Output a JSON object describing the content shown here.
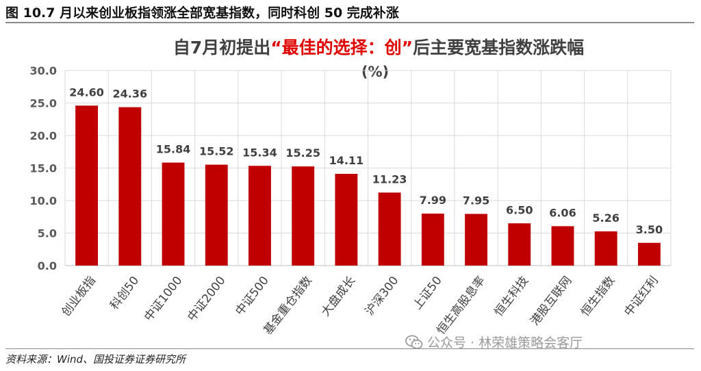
{
  "figure": {
    "title": "图 10.7 月以来创业板指领涨全部宽基指数，同时科创 50 完成补涨",
    "source": "资料来源：Wind、国投证券证券研究所",
    "watermark": "公众号 · 林荣雄策略会客厅",
    "watermark_icon": "wechat-icon"
  },
  "chart_data": {
    "type": "bar",
    "title_pre": "自7月初提出",
    "title_highlight": "“最佳的选择：创”",
    "title_post": "后主要宽基指数涨跌幅",
    "subtitle": "(%)",
    "categories": [
      "创业板指",
      "科创50",
      "中证1000",
      "中证2000",
      "中证500",
      "基金重仓指数",
      "大盘成长",
      "沪深300",
      "上证50",
      "恒生高股息率",
      "恒生科技",
      "港股互联网",
      "恒生指数",
      "中证红利"
    ],
    "values": [
      24.6,
      24.36,
      15.84,
      15.52,
      15.34,
      15.25,
      14.11,
      11.23,
      7.99,
      7.95,
      6.5,
      6.06,
      5.26,
      3.5
    ],
    "value_labels": [
      "24.60",
      "24.36",
      "15.84",
      "15.52",
      "15.34",
      "15.25",
      "14.11",
      "11.23",
      "7.99",
      "7.95",
      "6.50",
      "6.06",
      "5.26",
      "3.50"
    ],
    "ylim": [
      0,
      30
    ],
    "yticks": [
      "0.0",
      "5.0",
      "10.0",
      "15.0",
      "20.0",
      "25.0",
      "30.0"
    ],
    "grid": true,
    "colors": {
      "bar": "#c00000",
      "highlight": "#e00000",
      "grid": "#d9d9d9",
      "axis": "#bfbfbf",
      "title": "#404040"
    }
  }
}
